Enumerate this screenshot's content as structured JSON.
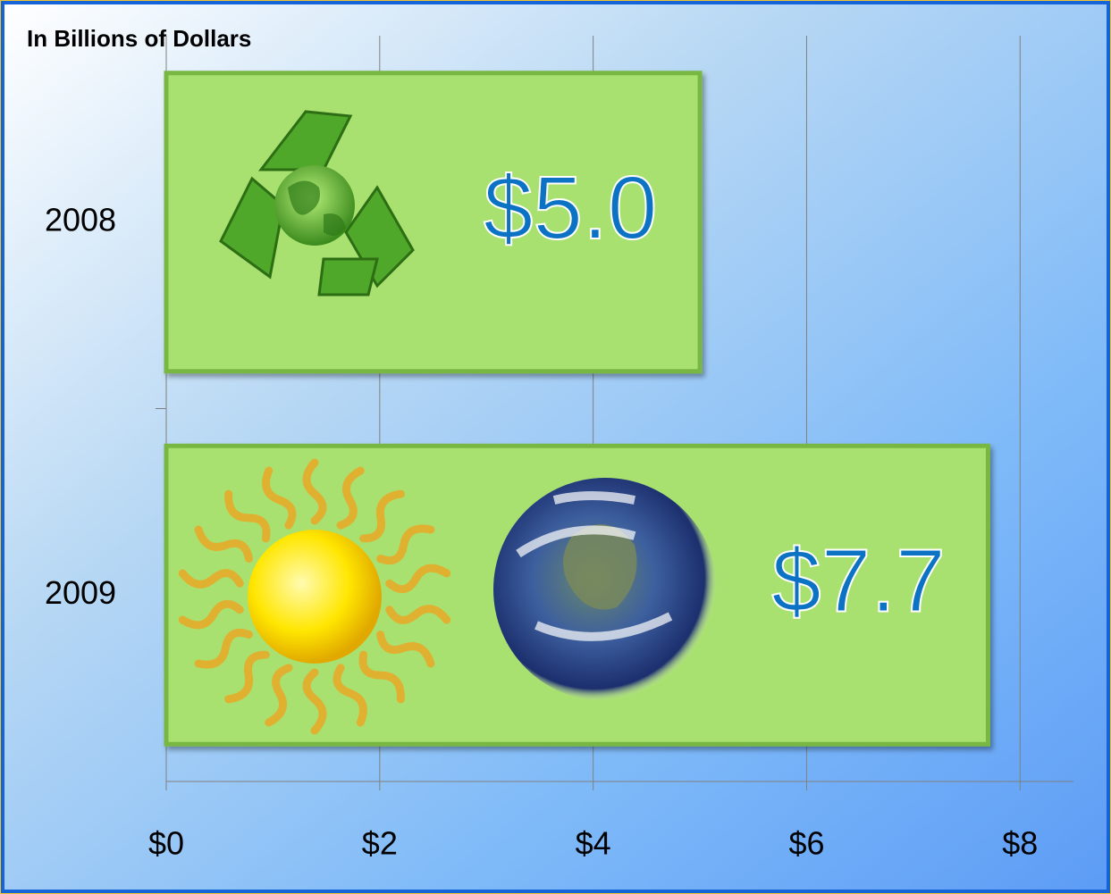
{
  "chart_data": {
    "type": "bar",
    "orientation": "horizontal",
    "axis_title": "In Billions of Dollars",
    "categories": [
      "2008",
      "2009"
    ],
    "values": [
      5.0,
      7.7
    ],
    "value_labels": [
      "$5.0",
      "$7.7"
    ],
    "color": "#a9e171",
    "xlim": [
      0,
      8.5
    ],
    "xticks": [
      {
        "value": 0,
        "label": "$0"
      },
      {
        "value": 2,
        "label": "$2"
      },
      {
        "value": 4,
        "label": "$4"
      },
      {
        "value": 6,
        "label": "$6"
      },
      {
        "value": 8,
        "label": "$8"
      }
    ],
    "grid": true
  }
}
